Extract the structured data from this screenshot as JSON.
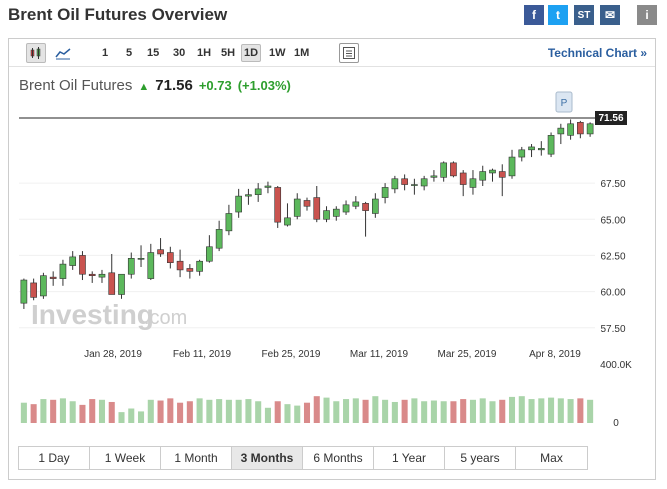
{
  "header": {
    "title": "Brent Oil Futures Overview",
    "share": [
      {
        "name": "facebook-icon",
        "glyph": "f",
        "color": "#3b5998"
      },
      {
        "name": "twitter-icon",
        "glyph": "t",
        "color": "#1da1f2"
      },
      {
        "name": "stocktwits-icon",
        "glyph": "ST",
        "color": "#3a5f8c"
      },
      {
        "name": "email-icon",
        "glyph": "✉",
        "color": "#3a5f8c"
      },
      {
        "name": "info-icon",
        "glyph": "i",
        "color": "#8a8a8a"
      }
    ]
  },
  "toolbar": {
    "intervals": [
      "1",
      "5",
      "15",
      "30",
      "1H",
      "5H",
      "1D",
      "1W",
      "1M"
    ],
    "active_interval": "1D",
    "technical_link": "Technical Chart »"
  },
  "quote": {
    "name": "Brent Oil Futures",
    "arrow": "▲",
    "last": "71.56",
    "change": "+0.73",
    "change_pct": "(+1.03%)"
  },
  "watermark": {
    "brand": "Investing",
    "suffix": ".com"
  },
  "marker": "P",
  "chart_data": {
    "type": "candlestick",
    "symbol": "Brent Oil Futures",
    "last_price": 71.56,
    "last_price_label": "71.56",
    "y_ticks": [
      "67.50",
      "65.00",
      "62.50",
      "60.00",
      "57.50"
    ],
    "ylim": [
      57.0,
      72.0
    ],
    "x_ticks": [
      "Jan 28, 2019",
      "Feb 11, 2019",
      "Feb 25, 2019",
      "Mar 11, 2019",
      "Mar 25, 2019",
      "Apr 8, 2019"
    ],
    "volume_axis": [
      "400.0K",
      "0"
    ],
    "volume_max": 400000,
    "candles": [
      {
        "o": 59.2,
        "h": 60.9,
        "l": 58.8,
        "c": 60.8
      },
      {
        "o": 60.6,
        "h": 60.9,
        "l": 59.4,
        "c": 59.6
      },
      {
        "o": 59.7,
        "h": 61.3,
        "l": 59.5,
        "c": 61.1
      },
      {
        "o": 61.0,
        "h": 61.4,
        "l": 60.4,
        "c": 60.9
      },
      {
        "o": 60.9,
        "h": 62.2,
        "l": 60.4,
        "c": 61.9
      },
      {
        "o": 61.8,
        "h": 62.8,
        "l": 61.5,
        "c": 62.4
      },
      {
        "o": 62.5,
        "h": 62.8,
        "l": 60.8,
        "c": 61.2
      },
      {
        "o": 61.2,
        "h": 61.4,
        "l": 60.6,
        "c": 61.1
      },
      {
        "o": 61.0,
        "h": 61.5,
        "l": 60.6,
        "c": 61.2
      },
      {
        "o": 61.3,
        "h": 62.6,
        "l": 59.8,
        "c": 59.8
      },
      {
        "o": 59.8,
        "h": 61.2,
        "l": 59.5,
        "c": 61.2
      },
      {
        "o": 61.2,
        "h": 62.7,
        "l": 60.9,
        "c": 62.3
      },
      {
        "o": 62.3,
        "h": 63.2,
        "l": 61.7,
        "c": 62.3
      },
      {
        "o": 60.9,
        "h": 63.3,
        "l": 60.8,
        "c": 62.7
      },
      {
        "o": 62.9,
        "h": 63.7,
        "l": 62.4,
        "c": 62.6
      },
      {
        "o": 62.7,
        "h": 63.1,
        "l": 61.6,
        "c": 62.0
      },
      {
        "o": 62.1,
        "h": 62.9,
        "l": 61.0,
        "c": 61.5
      },
      {
        "o": 61.6,
        "h": 61.9,
        "l": 60.9,
        "c": 61.4
      },
      {
        "o": 61.4,
        "h": 62.2,
        "l": 61.1,
        "c": 62.1
      },
      {
        "o": 62.1,
        "h": 63.9,
        "l": 62.0,
        "c": 63.1
      },
      {
        "o": 63.0,
        "h": 64.9,
        "l": 62.8,
        "c": 64.3
      },
      {
        "o": 64.2,
        "h": 66.0,
        "l": 63.9,
        "c": 65.4
      },
      {
        "o": 65.5,
        "h": 67.1,
        "l": 65.1,
        "c": 66.6
      },
      {
        "o": 66.6,
        "h": 67.1,
        "l": 66.0,
        "c": 66.7
      },
      {
        "o": 66.7,
        "h": 67.5,
        "l": 66.2,
        "c": 67.1
      },
      {
        "o": 67.2,
        "h": 67.6,
        "l": 66.8,
        "c": 67.3
      },
      {
        "o": 67.2,
        "h": 67.3,
        "l": 64.4,
        "c": 64.8
      },
      {
        "o": 64.6,
        "h": 66.1,
        "l": 64.5,
        "c": 65.1
      },
      {
        "o": 65.2,
        "h": 66.8,
        "l": 65.0,
        "c": 66.4
      },
      {
        "o": 66.3,
        "h": 66.5,
        "l": 65.6,
        "c": 65.9
      },
      {
        "o": 66.5,
        "h": 67.3,
        "l": 64.8,
        "c": 65.0
      },
      {
        "o": 65.0,
        "h": 65.9,
        "l": 64.8,
        "c": 65.6
      },
      {
        "o": 65.2,
        "h": 65.9,
        "l": 64.9,
        "c": 65.7
      },
      {
        "o": 65.5,
        "h": 66.3,
        "l": 65.3,
        "c": 66.0
      },
      {
        "o": 65.9,
        "h": 66.6,
        "l": 65.7,
        "c": 66.2
      },
      {
        "o": 66.1,
        "h": 66.2,
        "l": 63.8,
        "c": 65.6
      },
      {
        "o": 65.4,
        "h": 66.8,
        "l": 65.1,
        "c": 66.4
      },
      {
        "o": 66.5,
        "h": 67.5,
        "l": 66.1,
        "c": 67.2
      },
      {
        "o": 67.1,
        "h": 68.0,
        "l": 66.8,
        "c": 67.8
      },
      {
        "o": 67.8,
        "h": 68.1,
        "l": 67.0,
        "c": 67.4
      },
      {
        "o": 67.4,
        "h": 67.8,
        "l": 66.7,
        "c": 67.4
      },
      {
        "o": 67.3,
        "h": 68.0,
        "l": 67.0,
        "c": 67.8
      },
      {
        "o": 67.9,
        "h": 68.4,
        "l": 67.6,
        "c": 68.0
      },
      {
        "o": 67.9,
        "h": 69.0,
        "l": 67.6,
        "c": 68.9
      },
      {
        "o": 68.9,
        "h": 69.0,
        "l": 67.9,
        "c": 68.0
      },
      {
        "o": 68.2,
        "h": 68.4,
        "l": 66.6,
        "c": 67.4
      },
      {
        "o": 67.2,
        "h": 68.4,
        "l": 66.7,
        "c": 67.8
      },
      {
        "o": 67.7,
        "h": 68.7,
        "l": 67.3,
        "c": 68.3
      },
      {
        "o": 68.2,
        "h": 68.5,
        "l": 67.6,
        "c": 68.4
      },
      {
        "o": 68.3,
        "h": 68.8,
        "l": 66.6,
        "c": 67.9
      },
      {
        "o": 68.0,
        "h": 69.8,
        "l": 67.8,
        "c": 69.3
      },
      {
        "o": 69.3,
        "h": 70.0,
        "l": 69.0,
        "c": 69.8
      },
      {
        "o": 69.8,
        "h": 70.2,
        "l": 69.3,
        "c": 70.0
      },
      {
        "o": 69.8,
        "h": 70.4,
        "l": 69.4,
        "c": 69.9
      },
      {
        "o": 69.5,
        "h": 71.0,
        "l": 69.3,
        "c": 70.8
      },
      {
        "o": 70.9,
        "h": 71.6,
        "l": 70.2,
        "c": 71.3
      },
      {
        "o": 70.8,
        "h": 71.9,
        "l": 70.5,
        "c": 71.6
      },
      {
        "o": 71.7,
        "h": 71.8,
        "l": 70.6,
        "c": 70.9
      },
      {
        "o": 70.9,
        "h": 71.7,
        "l": 70.7,
        "c": 71.6
      }
    ],
    "volumes": [
      140,
      130,
      165,
      160,
      170,
      150,
      125,
      165,
      160,
      145,
      75,
      100,
      80,
      160,
      155,
      170,
      140,
      150,
      170,
      160,
      165,
      160,
      160,
      165,
      150,
      105,
      150,
      130,
      120,
      140,
      185,
      175,
      150,
      165,
      170,
      160,
      185,
      160,
      145,
      160,
      170,
      150,
      155,
      150,
      150,
      165,
      160,
      170,
      150,
      160,
      180,
      185,
      165,
      170,
      175,
      170,
      165,
      170,
      160
    ]
  },
  "ranges": [
    "1 Day",
    "1 Week",
    "1 Month",
    "3 Months",
    "6 Months",
    "1 Year",
    "5 years",
    "Max"
  ],
  "active_range": "3 Months"
}
